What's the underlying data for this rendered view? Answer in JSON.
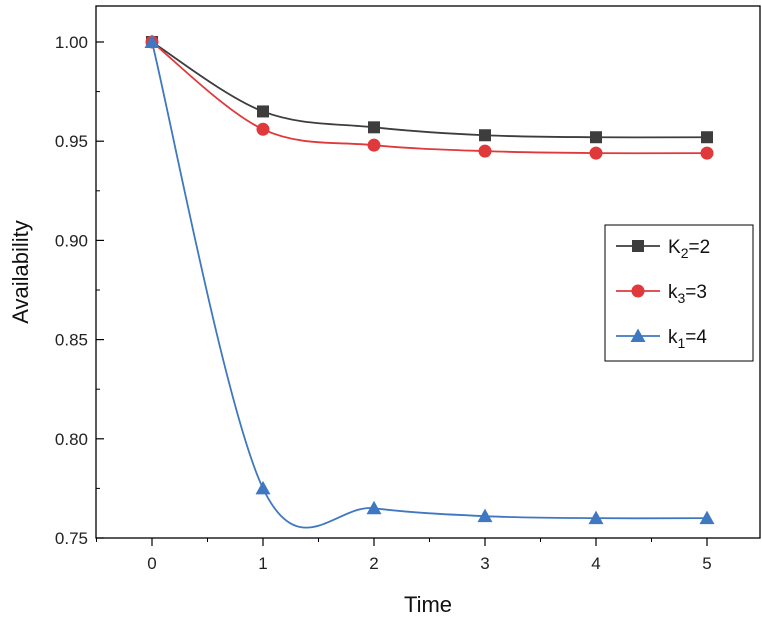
{
  "chart_data": {
    "type": "line",
    "title": "",
    "xlabel": "Time",
    "ylabel": "Availability",
    "xlim": [
      -0.5,
      5.5
    ],
    "ylim": [
      0.75,
      1.02
    ],
    "xticks": [
      0,
      1,
      2,
      3,
      4,
      5
    ],
    "yticks": [
      0.75,
      0.8,
      0.85,
      0.9,
      0.95,
      1.0
    ],
    "ytick_labels": [
      "0.75",
      "0.80",
      "0.85",
      "0.90",
      "0.95",
      "1.00"
    ],
    "x": [
      0,
      1,
      2,
      3,
      4,
      5
    ],
    "grid": false,
    "legend_position": "right",
    "series": [
      {
        "name": "K2=2",
        "label_main": "K",
        "label_sub": "2",
        "label_rest": "=2",
        "color": "#3d3d3d",
        "marker": "square",
        "values": [
          1.0,
          0.965,
          0.957,
          0.953,
          0.952,
          0.952
        ]
      },
      {
        "name": "k3=3",
        "label_main": "k",
        "label_sub": "3",
        "label_rest": "=3",
        "color": "#e0393b",
        "marker": "circle",
        "values": [
          1.0,
          0.956,
          0.948,
          0.945,
          0.944,
          0.944
        ]
      },
      {
        "name": "k1=4",
        "label_main": "k",
        "label_sub": "1",
        "label_rest": "=4",
        "color": "#3f78c0",
        "marker": "triangle",
        "values": [
          1.0,
          0.775,
          0.765,
          0.761,
          0.76,
          0.76
        ]
      }
    ]
  }
}
